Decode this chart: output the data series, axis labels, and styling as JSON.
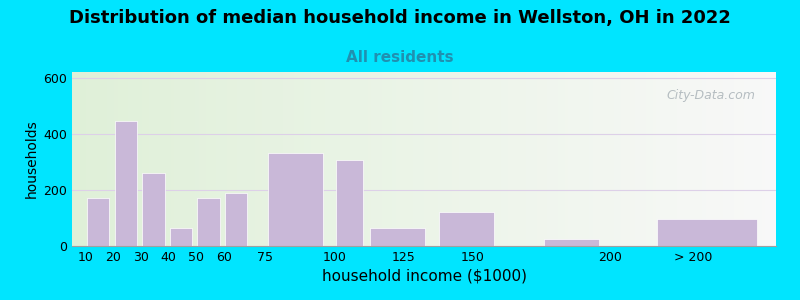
{
  "title": "Distribution of median household income in Wellston, OH in 2022",
  "subtitle": "All residents",
  "xlabel": "household income ($1000)",
  "ylabel": "households",
  "bar_heights": [
    170,
    445,
    260,
    65,
    170,
    190,
    330,
    305,
    65,
    120,
    25,
    95
  ],
  "bar_lefts": [
    10,
    20,
    30,
    40,
    50,
    60,
    75,
    100,
    112,
    137,
    175,
    215
  ],
  "bar_widths": [
    9,
    9,
    9,
    9,
    9,
    9,
    22,
    11,
    22,
    22,
    22,
    40
  ],
  "bar_color": "#c9b8d8",
  "ylim": [
    0,
    620
  ],
  "yticks": [
    0,
    200,
    400,
    600
  ],
  "xlim": [
    5,
    260
  ],
  "tick_positions": [
    10,
    20,
    30,
    40,
    50,
    60,
    75,
    100,
    125,
    150,
    200,
    230
  ],
  "tick_labels": [
    "10",
    "20",
    "30",
    "40",
    "50",
    "60",
    "75",
    "100",
    "125",
    "150",
    "200",
    "> 200"
  ],
  "background_outer": "#00e5ff",
  "bg_left_color": "#dff0d8",
  "bg_right_color": "#f8f8f8",
  "title_fontsize": 13,
  "subtitle_fontsize": 11,
  "subtitle_color": "#2090b0",
  "watermark_text": "City-Data.com",
  "grid_color": "#ddd0e8",
  "xlabel_fontsize": 11,
  "ylabel_fontsize": 10
}
